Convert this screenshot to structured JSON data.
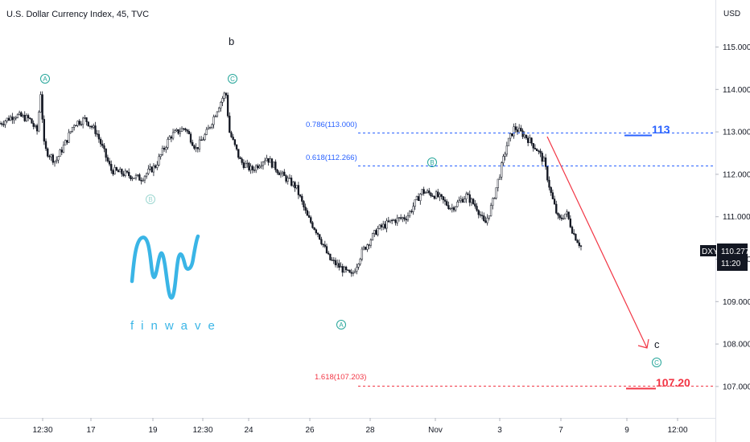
{
  "header": {
    "symbol_title": "U.S. Dollar Currency Index, 45, TVC",
    "currency": "USD"
  },
  "price_badge": {
    "symbol": "DXY",
    "price": "110.277",
    "countdown": "11:20",
    "color": "#131722"
  },
  "colors": {
    "fib_line": "#2962ff",
    "target_red": "#f23645",
    "wave_green": "#26a69a",
    "candle": "#131722",
    "brand": "#3ab5e6"
  },
  "fib_levels": [
    {
      "label": "0.786(113.000)",
      "price": 113.0,
      "color": "#2962ff"
    },
    {
      "label": "0.618(112.266)",
      "price": 112.266,
      "color": "#2962ff"
    },
    {
      "label": "1.618(107.203)",
      "price": 107.203,
      "color": "#f23645"
    }
  ],
  "targets": [
    {
      "label": "113",
      "price": 113.0,
      "color": "#2962ff"
    },
    {
      "label": "107.20",
      "price": 107.203,
      "color": "#f23645"
    }
  ],
  "wave_labels": [
    {
      "text": "b",
      "type": "letter"
    },
    {
      "text": "c",
      "type": "letter"
    },
    {
      "text": "A",
      "type": "circle"
    },
    {
      "text": "C",
      "type": "circle"
    },
    {
      "text": "B",
      "type": "circle"
    },
    {
      "text": "A",
      "type": "circle"
    },
    {
      "text": "B",
      "type": "circle"
    },
    {
      "text": "C",
      "type": "circle"
    }
  ],
  "brand": {
    "name": "finwave",
    "icon": "finwave-logo-icon"
  },
  "chart_data": {
    "type": "candlestick",
    "title": "U.S. Dollar Currency Index, 45, TVC",
    "ylabel": "USD",
    "ylim": [
      106.6,
      115.9
    ],
    "y_ticks": [
      "115.000",
      "114.000",
      "113.000",
      "112.000",
      "111.000",
      "110.000",
      "109.000",
      "108.000",
      "107.000"
    ],
    "x_ticks": [
      "12:30",
      "17",
      "19",
      "12:30",
      "24",
      "26",
      "28",
      "Nov",
      "3",
      "7",
      "9",
      "12:00"
    ],
    "close_path": [
      [
        0,
        113.2
      ],
      [
        0.02,
        113.4
      ],
      [
        0.04,
        113.3
      ],
      [
        0.05,
        113.0
      ],
      [
        0.055,
        113.95
      ],
      [
        0.06,
        112.6
      ],
      [
        0.075,
        112.3
      ],
      [
        0.09,
        112.8
      ],
      [
        0.1,
        113.2
      ],
      [
        0.115,
        113.3
      ],
      [
        0.13,
        113.0
      ],
      [
        0.15,
        112.1
      ],
      [
        0.17,
        112.0
      ],
      [
        0.19,
        111.9
      ],
      [
        0.21,
        112.2
      ],
      [
        0.23,
        112.9
      ],
      [
        0.25,
        113.1
      ],
      [
        0.265,
        112.6
      ],
      [
        0.28,
        113.0
      ],
      [
        0.295,
        113.6
      ],
      [
        0.305,
        113.95
      ],
      [
        0.31,
        113.0
      ],
      [
        0.325,
        112.3
      ],
      [
        0.34,
        112.1
      ],
      [
        0.36,
        112.4
      ],
      [
        0.38,
        112.0
      ],
      [
        0.4,
        111.7
      ],
      [
        0.415,
        111.0
      ],
      [
        0.43,
        110.6
      ],
      [
        0.445,
        110.0
      ],
      [
        0.46,
        109.8
      ],
      [
        0.475,
        109.6
      ],
      [
        0.49,
        110.2
      ],
      [
        0.51,
        110.7
      ],
      [
        0.53,
        110.9
      ],
      [
        0.55,
        111.0
      ],
      [
        0.57,
        111.6
      ],
      [
        0.59,
        111.5
      ],
      [
        0.61,
        111.2
      ],
      [
        0.63,
        111.5
      ],
      [
        0.645,
        111.2
      ],
      [
        0.655,
        110.8
      ],
      [
        0.665,
        111.3
      ],
      [
        0.675,
        112.0
      ],
      [
        0.685,
        112.7
      ],
      [
        0.695,
        113.1
      ],
      [
        0.71,
        112.9
      ],
      [
        0.725,
        112.6
      ],
      [
        0.735,
        112.3
      ],
      [
        0.745,
        111.5
      ],
      [
        0.755,
        110.9
      ],
      [
        0.765,
        111.1
      ],
      [
        0.775,
        110.6
      ],
      [
        0.785,
        110.3
      ]
    ],
    "projection": {
      "from": {
        "x_tick": "7",
        "price": 112.9
      },
      "to": {
        "x_tick": "9",
        "price": 107.95
      }
    }
  }
}
